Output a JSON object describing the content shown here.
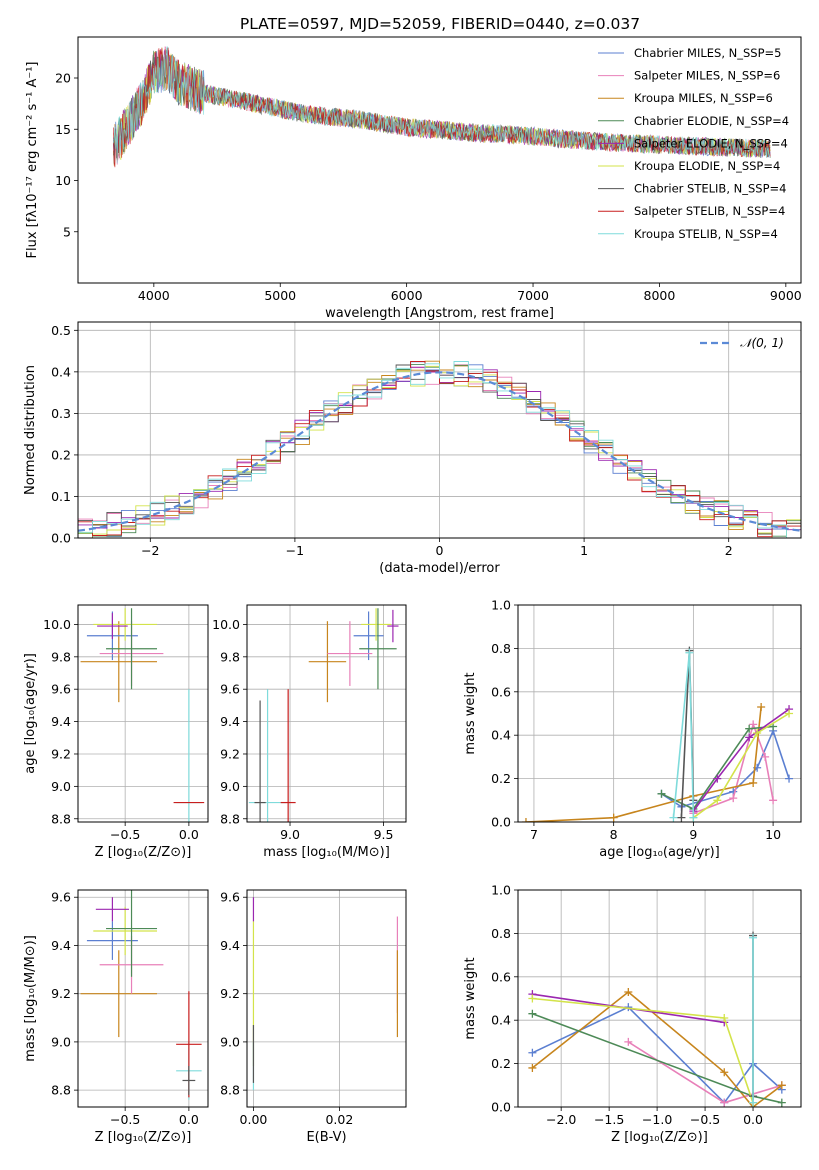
{
  "figure": {
    "title": "PLATE=0597, MJD=52059, FIBERID=0440, z=0.037"
  },
  "chart_data": [
    {
      "id": "spectrum",
      "type": "line",
      "xlabel": "wavelength [Angstrom, rest frame]",
      "ylabel": "Flux [fλ10⁻¹⁷ erg cm⁻² s⁻¹ A⁻¹]",
      "xlim": [
        3400,
        9120
      ],
      "ylim": [
        0,
        24
      ],
      "xticks": [
        4000,
        5000,
        6000,
        7000,
        8000,
        9000
      ],
      "yticks": [
        5,
        10,
        15,
        20
      ],
      "grid": false,
      "legend_position": "top-right",
      "x": [
        3700,
        3800,
        3900,
        4000,
        4100,
        4200,
        4300,
        4400,
        4600,
        4800,
        5000,
        5200,
        5400,
        5600,
        5800,
        6000,
        6200,
        6400,
        6600,
        6800,
        7000,
        7200,
        7400,
        7600,
        7800,
        8000,
        8200,
        8400,
        8600,
        8800
      ],
      "y": [
        13.5,
        15.5,
        17.5,
        20.5,
        21.0,
        19.5,
        19.0,
        18.5,
        18.0,
        17.5,
        17.0,
        16.5,
        16.2,
        16.0,
        15.6,
        15.2,
        15.0,
        14.8,
        14.6,
        14.5,
        14.3,
        14.1,
        13.9,
        13.7,
        13.6,
        13.5,
        13.4,
        13.3,
        13.2,
        13.1
      ],
      "series": [
        {
          "name": "Chabrier MILES, N_SSP=5",
          "color": "#5b7fd1"
        },
        {
          "name": "Salpeter MILES, N_SSP=6",
          "color": "#e880b9"
        },
        {
          "name": "Kroupa MILES, N_SSP=6",
          "color": "#c7851d"
        },
        {
          "name": "Chabrier ELODIE, N_SSP=4",
          "color": "#4d8a57"
        },
        {
          "name": "Salpeter ELODIE, N_SSP=4",
          "color": "#9b27b0"
        },
        {
          "name": "Kroupa ELODIE, N_SSP=4",
          "color": "#d3e34a"
        },
        {
          "name": "Chabrier STELIB, N_SSP=4",
          "color": "#555555"
        },
        {
          "name": "Salpeter STELIB, N_SSP=4",
          "color": "#c81e1e"
        },
        {
          "name": "Kroupa STELIB, N_SSP=4",
          "color": "#7fdbdb"
        }
      ]
    },
    {
      "id": "residuals",
      "type": "line",
      "xlabel": "(data-model)/error",
      "ylabel": "Normed distribution",
      "xlim": [
        -2.5,
        2.5
      ],
      "ylim": [
        0,
        0.52
      ],
      "xticks": [
        -2,
        -1,
        0,
        1,
        2
      ],
      "yticks": [
        0.0,
        0.1,
        0.2,
        0.3,
        0.4,
        0.5
      ],
      "grid": true,
      "legend_position": "top-right",
      "series": [
        {
          "name": "𝒩(0, 1)",
          "color": "#5b8ad6",
          "style": "dashed"
        }
      ]
    },
    {
      "id": "age-vs-z",
      "type": "scatter",
      "xlabel": "Z [log₁₀(Z/Z⊙)]",
      "ylabel": "age  [log₁₀(age/yr)]",
      "xlim": [
        -0.87,
        0.15
      ],
      "ylim": [
        8.78,
        10.12
      ],
      "xticks": [
        -0.5,
        0.0
      ],
      "yticks": [
        8.8,
        9.0,
        9.2,
        9.4,
        9.6,
        9.8,
        10.0
      ],
      "grid": true,
      "points": [
        {
          "x": -0.55,
          "y": 9.77,
          "xerr": 0.3,
          "yerr": 0.25,
          "color": "#c7851d"
        },
        {
          "x": -0.6,
          "y": 9.93,
          "xerr": 0.2,
          "yerr": 0.15,
          "color": "#5b7fd1"
        },
        {
          "x": -0.45,
          "y": 9.82,
          "xerr": 0.25,
          "yerr": 0.2,
          "color": "#e880b9"
        },
        {
          "x": -0.5,
          "y": 10.0,
          "xerr": 0.25,
          "yerr": 0.1,
          "color": "#d3e34a"
        },
        {
          "x": -0.45,
          "y": 9.85,
          "xerr": 0.2,
          "yerr": 0.25,
          "color": "#4d8a57"
        },
        {
          "x": -0.6,
          "y": 9.99,
          "xerr": 0.12,
          "yerr": 0.08,
          "color": "#9b27b0"
        },
        {
          "x": 0.0,
          "y": 8.9,
          "xerr": 0.1,
          "yerr": 0.7,
          "color": "#7fdbdb"
        },
        {
          "x": 0.0,
          "y": 8.9,
          "xerr": 0.12,
          "yerr": 0.0,
          "color": "#c81e1e"
        }
      ]
    },
    {
      "id": "age-vs-mass",
      "type": "scatter",
      "xlabel": "mass [log₁₀(M/M⊙)]",
      "ylabel": "",
      "xlim": [
        8.77,
        9.62
      ],
      "ylim": [
        8.78,
        10.12
      ],
      "xticks": [
        9.0,
        9.5
      ],
      "yticks": [
        8.8,
        9.0,
        9.2,
        9.4,
        9.6,
        9.8,
        10.0
      ],
      "grid": true,
      "points": [
        {
          "x": 9.2,
          "y": 9.77,
          "xerr": 0.1,
          "yerr": 0.25,
          "color": "#c7851d"
        },
        {
          "x": 9.42,
          "y": 9.93,
          "xerr": 0.08,
          "yerr": 0.15,
          "color": "#5b7fd1"
        },
        {
          "x": 9.32,
          "y": 9.82,
          "xerr": 0.12,
          "yerr": 0.2,
          "color": "#e880b9"
        },
        {
          "x": 9.46,
          "y": 10.0,
          "xerr": 0.08,
          "yerr": 0.1,
          "color": "#d3e34a"
        },
        {
          "x": 9.47,
          "y": 9.85,
          "xerr": 0.1,
          "yerr": 0.25,
          "color": "#4d8a57"
        },
        {
          "x": 9.55,
          "y": 9.99,
          "xerr": 0.03,
          "yerr": 0.1,
          "color": "#9b27b0"
        },
        {
          "x": 8.88,
          "y": 8.9,
          "xerr": 0.1,
          "yerr": 0.7,
          "color": "#7fdbdb"
        },
        {
          "x": 8.99,
          "y": 8.9,
          "xerr": 0.04,
          "yerr": 0.7,
          "color": "#c81e1e"
        },
        {
          "x": 8.84,
          "y": 8.9,
          "xerr": 0.03,
          "yerr": 0.63,
          "color": "#555555"
        }
      ]
    },
    {
      "id": "weight-vs-age",
      "type": "line",
      "xlabel": "age  [log₁₀(age/yr)]",
      "ylabel": "mass weight",
      "xlim": [
        6.8,
        10.35
      ],
      "ylim": [
        0.0,
        1.0
      ],
      "xticks": [
        7,
        8,
        9,
        10
      ],
      "yticks": [
        0.0,
        0.2,
        0.4,
        0.6,
        0.8,
        1.0
      ],
      "grid": true,
      "series": [
        {
          "name": "Chabrier MILES",
          "color": "#5b7fd1",
          "x": [
            8.6,
            8.85,
            9.5,
            9.8,
            10.0,
            10.2
          ],
          "y": [
            0.13,
            0.07,
            0.14,
            0.25,
            0.42,
            0.2
          ]
        },
        {
          "name": "Salpeter MILES",
          "color": "#e880b9",
          "x": [
            9.0,
            9.5,
            9.75,
            9.9,
            10.0
          ],
          "y": [
            0.04,
            0.11,
            0.45,
            0.3,
            0.1
          ]
        },
        {
          "name": "Kroupa MILES",
          "color": "#c7851d",
          "x": [
            6.9,
            8.0,
            9.0,
            9.75,
            9.85
          ],
          "y": [
            0.0,
            0.02,
            0.12,
            0.18,
            0.53
          ]
        },
        {
          "name": "Chabrier ELODIE",
          "color": "#4d8a57",
          "x": [
            8.6,
            9.0,
            9.7,
            10.0
          ],
          "y": [
            0.13,
            0.06,
            0.43,
            0.44
          ]
        },
        {
          "name": "Salpeter ELODIE",
          "color": "#9b27b0",
          "x": [
            9.0,
            9.3,
            9.7,
            10.2
          ],
          "y": [
            0.05,
            0.2,
            0.39,
            0.52
          ]
        },
        {
          "name": "Kroupa ELODIE",
          "color": "#d3e34a",
          "x": [
            9.0,
            9.3,
            9.8,
            10.2
          ],
          "y": [
            0.02,
            0.1,
            0.41,
            0.5
          ]
        },
        {
          "name": "Chabrier STELIB",
          "color": "#555555",
          "x": [
            8.85,
            8.95,
            9.0
          ],
          "y": [
            0.02,
            0.79,
            0.1
          ]
        },
        {
          "name": "Kroupa STELIB",
          "color": "#7fdbdb",
          "x": [
            8.75,
            8.95,
            9.0
          ],
          "y": [
            0.02,
            0.78,
            0.02
          ]
        }
      ]
    },
    {
      "id": "mass-vs-z",
      "type": "scatter",
      "xlabel": "Z [log₁₀(Z/Z⊙)]",
      "ylabel": "mass [log₁₀(M/M⊙)]",
      "xlim": [
        -0.87,
        0.15
      ],
      "ylim": [
        8.73,
        9.63
      ],
      "xticks": [
        -0.5,
        0.0
      ],
      "yticks": [
        8.8,
        9.0,
        9.2,
        9.4,
        9.6
      ],
      "grid": true,
      "points": [
        {
          "x": -0.55,
          "y": 9.2,
          "xerr": 0.3,
          "yerr": 0.18,
          "color": "#c7851d"
        },
        {
          "x": -0.6,
          "y": 9.42,
          "xerr": 0.2,
          "yerr": 0.08,
          "color": "#5b7fd1"
        },
        {
          "x": -0.45,
          "y": 9.32,
          "xerr": 0.25,
          "yerr": 0.12,
          "color": "#e880b9"
        },
        {
          "x": -0.5,
          "y": 9.46,
          "xerr": 0.25,
          "yerr": 0.1,
          "color": "#d3e34a"
        },
        {
          "x": -0.45,
          "y": 9.47,
          "xerr": 0.2,
          "yerr": 0.2,
          "color": "#4d8a57"
        },
        {
          "x": -0.6,
          "y": 9.55,
          "xerr": 0.13,
          "yerr": 0.05,
          "color": "#9b27b0"
        },
        {
          "x": 0.0,
          "y": 8.88,
          "xerr": 0.1,
          "yerr": 0.12,
          "color": "#7fdbdb"
        },
        {
          "x": 0.0,
          "y": 8.99,
          "xerr": 0.1,
          "yerr": 0.22,
          "color": "#c81e1e"
        },
        {
          "x": 0.0,
          "y": 8.84,
          "xerr": 0.05,
          "yerr": 0.06,
          "color": "#555555"
        }
      ]
    },
    {
      "id": "mass-vs-ebv",
      "type": "scatter",
      "xlabel": "E(B-V)",
      "ylabel": "",
      "xlim": [
        -0.0015,
        0.0355
      ],
      "ylim": [
        8.73,
        9.63
      ],
      "xticks": [
        0.0,
        0.02
      ],
      "yticks": [
        8.8,
        9.0,
        9.2,
        9.4,
        9.6
      ],
      "grid": true,
      "points": [
        {
          "x": 0.0,
          "y": 9.2,
          "xerr": 0.0,
          "yerr": 0.3,
          "color": "#d3e34a"
        },
        {
          "x": 0.0,
          "y": 9.55,
          "xerr": 0.0,
          "yerr": 0.05,
          "color": "#9b27b0"
        },
        {
          "x": 0.0,
          "y": 8.9,
          "xerr": 0.0,
          "yerr": 0.1,
          "color": "#7fdbdb"
        },
        {
          "x": 0.0,
          "y": 8.95,
          "xerr": 0.0,
          "yerr": 0.12,
          "color": "#555555"
        },
        {
          "x": 0.0335,
          "y": 9.32,
          "xerr": 0.0,
          "yerr": 0.2,
          "color": "#e880b9"
        },
        {
          "x": 0.0335,
          "y": 9.2,
          "xerr": 0.0,
          "yerr": 0.18,
          "color": "#c7851d"
        }
      ]
    },
    {
      "id": "weight-vs-z",
      "type": "line",
      "xlabel": "Z [log₁₀(Z/Z⊙)]",
      "ylabel": "mass weight",
      "xlim": [
        -2.45,
        0.5
      ],
      "ylim": [
        0.0,
        1.0
      ],
      "xticks": [
        -2.0,
        -1.5,
        -1.0,
        -0.5,
        0.0
      ],
      "yticks": [
        0.0,
        0.2,
        0.4,
        0.6,
        0.8,
        1.0
      ],
      "grid": true,
      "series": [
        {
          "name": "Chabrier MILES",
          "color": "#5b7fd1",
          "x": [
            -2.3,
            -1.3,
            -0.3,
            0.0,
            0.3
          ],
          "y": [
            0.25,
            0.46,
            0.02,
            0.2,
            0.08
          ]
        },
        {
          "name": "Salpeter MILES",
          "color": "#e880b9",
          "x": [
            -1.3,
            -0.3,
            0.3
          ],
          "y": [
            0.3,
            0.02,
            0.1
          ]
        },
        {
          "name": "Kroupa MILES",
          "color": "#c7851d",
          "x": [
            -2.3,
            -1.3,
            -0.3,
            0.0,
            0.3
          ],
          "y": [
            0.18,
            0.53,
            0.16,
            0.0,
            0.1
          ]
        },
        {
          "name": "Chabrier ELODIE",
          "color": "#4d8a57",
          "x": [
            -2.3,
            0.0,
            0.3
          ],
          "y": [
            0.43,
            0.05,
            0.02
          ]
        },
        {
          "name": "Salpeter ELODIE",
          "color": "#9b27b0",
          "x": [
            -2.3,
            -0.3
          ],
          "y": [
            0.52,
            0.39
          ]
        },
        {
          "name": "Kroupa ELODIE",
          "color": "#d3e34a",
          "x": [
            -2.3,
            -0.3,
            0.0
          ],
          "y": [
            0.5,
            0.41,
            0.02
          ]
        },
        {
          "name": "Chabrier STELIB",
          "color": "#555555",
          "x": [
            0.0,
            0.0
          ],
          "y": [
            0.05,
            0.79
          ]
        },
        {
          "name": "Kroupa STELIB",
          "color": "#7fdbdb",
          "x": [
            0.0,
            0.0
          ],
          "y": [
            0.02,
            0.78
          ]
        }
      ]
    }
  ]
}
